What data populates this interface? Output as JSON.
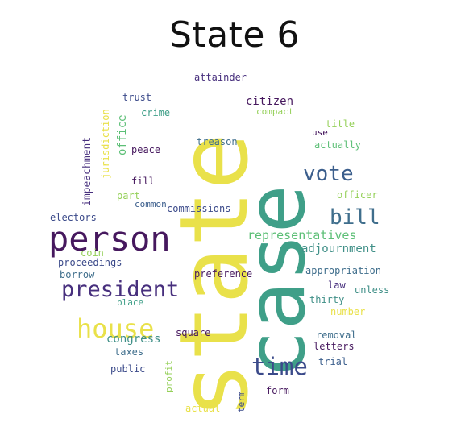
{
  "title": "State 6",
  "colors": {
    "dark_purple": "#46185e",
    "purple": "#472f7d",
    "indigo": "#3b4a8a",
    "blue": "#3b5e8c",
    "slate_blue": "#3f6e8c",
    "teal": "#3f8f87",
    "sea_green": "#3f9f88",
    "green": "#5cbf76",
    "light_green": "#95d059",
    "yellow": "#e9e14a"
  },
  "words": {
    "state": "state",
    "case": "case",
    "person": "person",
    "president": "president",
    "house": "house",
    "vote": "vote",
    "bill": "bill",
    "time": "time",
    "representatives": "representatives",
    "adjournment": "adjournment",
    "appropriation": "appropriation",
    "congress": "congress",
    "attainder": "attainder",
    "trust": "trust",
    "crime": "crime",
    "citizen": "citizen",
    "compact": "compact",
    "title": "title",
    "use": "use",
    "actually": "actually",
    "peace": "peace",
    "treason": "treason",
    "office": "office",
    "jurisdiction": "jurisdiction",
    "impeachment": "impeachment",
    "fill": "fill",
    "part": "part",
    "common": "common",
    "commissions": "commissions",
    "officer": "officer",
    "electors": "electors",
    "coin": "coin",
    "proceedings": "proceedings",
    "borrow": "borrow",
    "preference": "preference",
    "law": "law",
    "unless": "unless",
    "thirty": "thirty",
    "number": "number",
    "place": "place",
    "square": "square",
    "removal": "removal",
    "letters": "letters",
    "taxes": "taxes",
    "trial": "trial",
    "public": "public",
    "profit": "profit",
    "form": "form",
    "term": "term",
    "actual": "actual"
  }
}
